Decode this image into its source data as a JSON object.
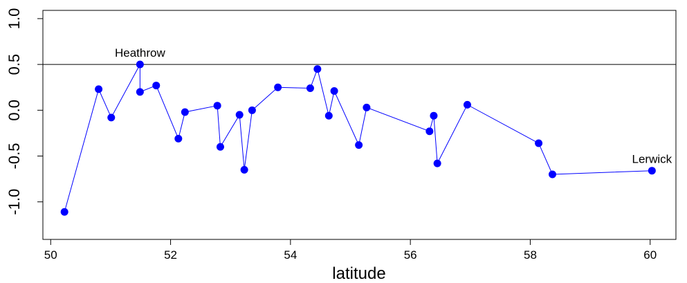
{
  "chart_data": {
    "type": "line",
    "x_label": "latitude",
    "x": [
      50.23,
      50.8,
      51.01,
      51.49,
      51.49,
      51.76,
      52.13,
      52.24,
      52.78,
      52.83,
      53.15,
      53.23,
      53.36,
      53.79,
      54.33,
      54.45,
      54.64,
      54.73,
      55.14,
      55.27,
      56.32,
      56.39,
      56.45,
      56.95,
      58.14,
      58.37,
      60.03
    ],
    "series": [
      {
        "color": "#0000ff",
        "values": [
          -1.11,
          0.23,
          -0.08,
          0.5,
          0.2,
          0.27,
          -0.31,
          -0.02,
          0.05,
          -0.4,
          -0.05,
          -0.65,
          0.0,
          0.25,
          0.24,
          0.45,
          -0.06,
          0.21,
          -0.38,
          0.03,
          -0.23,
          -0.06,
          -0.58,
          0.06,
          -0.36,
          -0.7,
          -0.66
        ]
      }
    ],
    "xlim": [
      49.87,
      60.43
    ],
    "ylim": [
      -1.41,
      1.09
    ],
    "xticks": [
      50,
      52,
      54,
      56,
      58,
      60
    ],
    "yticks": [
      {
        "value": -1,
        "label": "-1.0"
      },
      {
        "value": -0.5,
        "label": "-0.5"
      },
      {
        "value": 0,
        "label": "0.0"
      },
      {
        "value": 0.5,
        "label": "0.5"
      },
      {
        "value": 1,
        "label": "1.0"
      }
    ],
    "hline": 0.5,
    "annotations": [
      {
        "text": "Heathrow",
        "x": 51.49,
        "y": 0.5
      },
      {
        "text": "Lerwick",
        "x": 60.03,
        "y": -0.66
      }
    ]
  }
}
